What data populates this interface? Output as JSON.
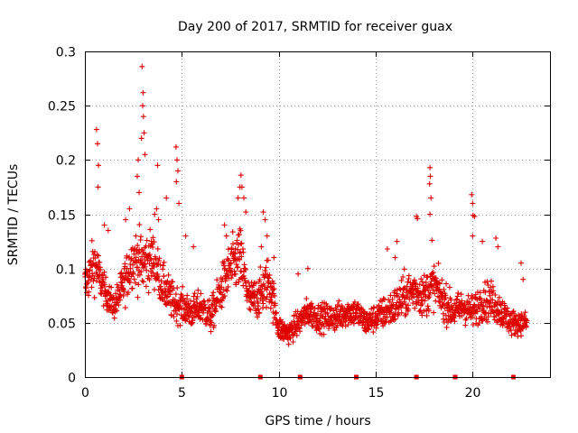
{
  "chart_data": {
    "type": "scatter",
    "title": "Day 200 of 2017, SRMTID for receiver guax",
    "xlabel": "GPS time / hours",
    "ylabel": "SRMTID / TECUs",
    "xlim": [
      0,
      23.99
    ],
    "ylim": [
      0,
      0.3
    ],
    "xticks": [
      0,
      5,
      10,
      15,
      20
    ],
    "xtick_labels": [
      "0",
      "5",
      "10",
      "15",
      "20"
    ],
    "yticks": [
      0,
      0.05,
      0.1,
      0.15,
      0.2,
      0.25,
      0.3
    ],
    "ytick_labels": [
      "0",
      "0.05",
      "0.1",
      "0.15",
      "0.2",
      "0.25",
      "0.3"
    ],
    "grid": true,
    "marker": "+",
    "color": "#e00000",
    "envelope": {
      "description": "approximate trend of the dense point cloud (x hours, y TECU)",
      "x": [
        0,
        0.5,
        1,
        1.5,
        2,
        2.5,
        3,
        3.5,
        4,
        4.5,
        5,
        5.5,
        6,
        6.5,
        7,
        7.5,
        8,
        8.5,
        9,
        9.5,
        10,
        10.5,
        11,
        11.5,
        12,
        12.5,
        13,
        13.5,
        14,
        14.5,
        15,
        15.5,
        16,
        16.5,
        17,
        17.5,
        18,
        18.5,
        19,
        19.5,
        20,
        20.5,
        21,
        21.5,
        22,
        22.5
      ],
      "y": [
        0.085,
        0.105,
        0.08,
        0.065,
        0.085,
        0.11,
        0.105,
        0.11,
        0.085,
        0.07,
        0.065,
        0.06,
        0.065,
        0.055,
        0.08,
        0.1,
        0.11,
        0.07,
        0.075,
        0.09,
        0.045,
        0.04,
        0.05,
        0.06,
        0.055,
        0.055,
        0.055,
        0.06,
        0.06,
        0.05,
        0.055,
        0.06,
        0.065,
        0.075,
        0.08,
        0.075,
        0.085,
        0.07,
        0.06,
        0.065,
        0.06,
        0.07,
        0.07,
        0.06,
        0.05,
        0.05
      ],
      "spread": [
        0.02,
        0.025,
        0.015,
        0.012,
        0.02,
        0.025,
        0.03,
        0.025,
        0.02,
        0.018,
        0.015,
        0.015,
        0.015,
        0.015,
        0.02,
        0.025,
        0.03,
        0.018,
        0.02,
        0.025,
        0.012,
        0.01,
        0.012,
        0.013,
        0.013,
        0.013,
        0.013,
        0.013,
        0.013,
        0.012,
        0.013,
        0.015,
        0.018,
        0.02,
        0.02,
        0.02,
        0.02,
        0.018,
        0.015,
        0.015,
        0.015,
        0.018,
        0.018,
        0.015,
        0.012,
        0.01
      ]
    },
    "peaks": [
      {
        "x": 0.6,
        "y": 0.228
      },
      {
        "x": 0.65,
        "y": 0.215
      },
      {
        "x": 0.7,
        "y": 0.195
      },
      {
        "x": 0.68,
        "y": 0.175
      },
      {
        "x": 1.0,
        "y": 0.14
      },
      {
        "x": 1.2,
        "y": 0.135
      },
      {
        "x": 2.1,
        "y": 0.145
      },
      {
        "x": 2.3,
        "y": 0.155
      },
      {
        "x": 2.7,
        "y": 0.185
      },
      {
        "x": 2.75,
        "y": 0.2
      },
      {
        "x": 2.8,
        "y": 0.17
      },
      {
        "x": 2.95,
        "y": 0.286
      },
      {
        "x": 3.0,
        "y": 0.262
      },
      {
        "x": 2.98,
        "y": 0.25
      },
      {
        "x": 3.02,
        "y": 0.24
      },
      {
        "x": 3.05,
        "y": 0.225
      },
      {
        "x": 2.92,
        "y": 0.22
      },
      {
        "x": 3.1,
        "y": 0.205
      },
      {
        "x": 3.6,
        "y": 0.15
      },
      {
        "x": 3.7,
        "y": 0.155
      },
      {
        "x": 3.8,
        "y": 0.145
      },
      {
        "x": 3.75,
        "y": 0.195
      },
      {
        "x": 4.2,
        "y": 0.165
      },
      {
        "x": 4.7,
        "y": 0.212
      },
      {
        "x": 4.75,
        "y": 0.2
      },
      {
        "x": 4.8,
        "y": 0.19
      },
      {
        "x": 4.72,
        "y": 0.18
      },
      {
        "x": 4.85,
        "y": 0.16
      },
      {
        "x": 5.2,
        "y": 0.13
      },
      {
        "x": 5.6,
        "y": 0.12
      },
      {
        "x": 7.2,
        "y": 0.14
      },
      {
        "x": 7.3,
        "y": 0.13
      },
      {
        "x": 7.9,
        "y": 0.165
      },
      {
        "x": 8.0,
        "y": 0.175
      },
      {
        "x": 8.05,
        "y": 0.186
      },
      {
        "x": 8.1,
        "y": 0.175
      },
      {
        "x": 8.2,
        "y": 0.165
      },
      {
        "x": 8.3,
        "y": 0.152
      },
      {
        "x": 9.2,
        "y": 0.152
      },
      {
        "x": 9.3,
        "y": 0.145
      },
      {
        "x": 9.4,
        "y": 0.13
      },
      {
        "x": 9.1,
        "y": 0.12
      },
      {
        "x": 9.75,
        "y": 0.11
      },
      {
        "x": 11.0,
        "y": 0.095
      },
      {
        "x": 11.5,
        "y": 0.1
      },
      {
        "x": 15.6,
        "y": 0.118
      },
      {
        "x": 16.1,
        "y": 0.125
      },
      {
        "x": 16.0,
        "y": 0.11
      },
      {
        "x": 17.1,
        "y": 0.148
      },
      {
        "x": 17.15,
        "y": 0.146
      },
      {
        "x": 17.8,
        "y": 0.193
      },
      {
        "x": 17.82,
        "y": 0.185
      },
      {
        "x": 17.78,
        "y": 0.178
      },
      {
        "x": 17.85,
        "y": 0.165
      },
      {
        "x": 17.8,
        "y": 0.15
      },
      {
        "x": 17.9,
        "y": 0.126
      },
      {
        "x": 19.95,
        "y": 0.168
      },
      {
        "x": 20.0,
        "y": 0.16
      },
      {
        "x": 20.02,
        "y": 0.149
      },
      {
        "x": 20.1,
        "y": 0.148
      },
      {
        "x": 20.0,
        "y": 0.13
      },
      {
        "x": 20.5,
        "y": 0.125
      },
      {
        "x": 21.2,
        "y": 0.128
      },
      {
        "x": 21.3,
        "y": 0.12
      },
      {
        "x": 22.5,
        "y": 0.105
      },
      {
        "x": 22.6,
        "y": 0.09
      }
    ],
    "zero_markers_x": [
      5.0,
      9.05,
      11.1,
      14.0,
      17.1,
      19.1,
      22.1
    ]
  }
}
